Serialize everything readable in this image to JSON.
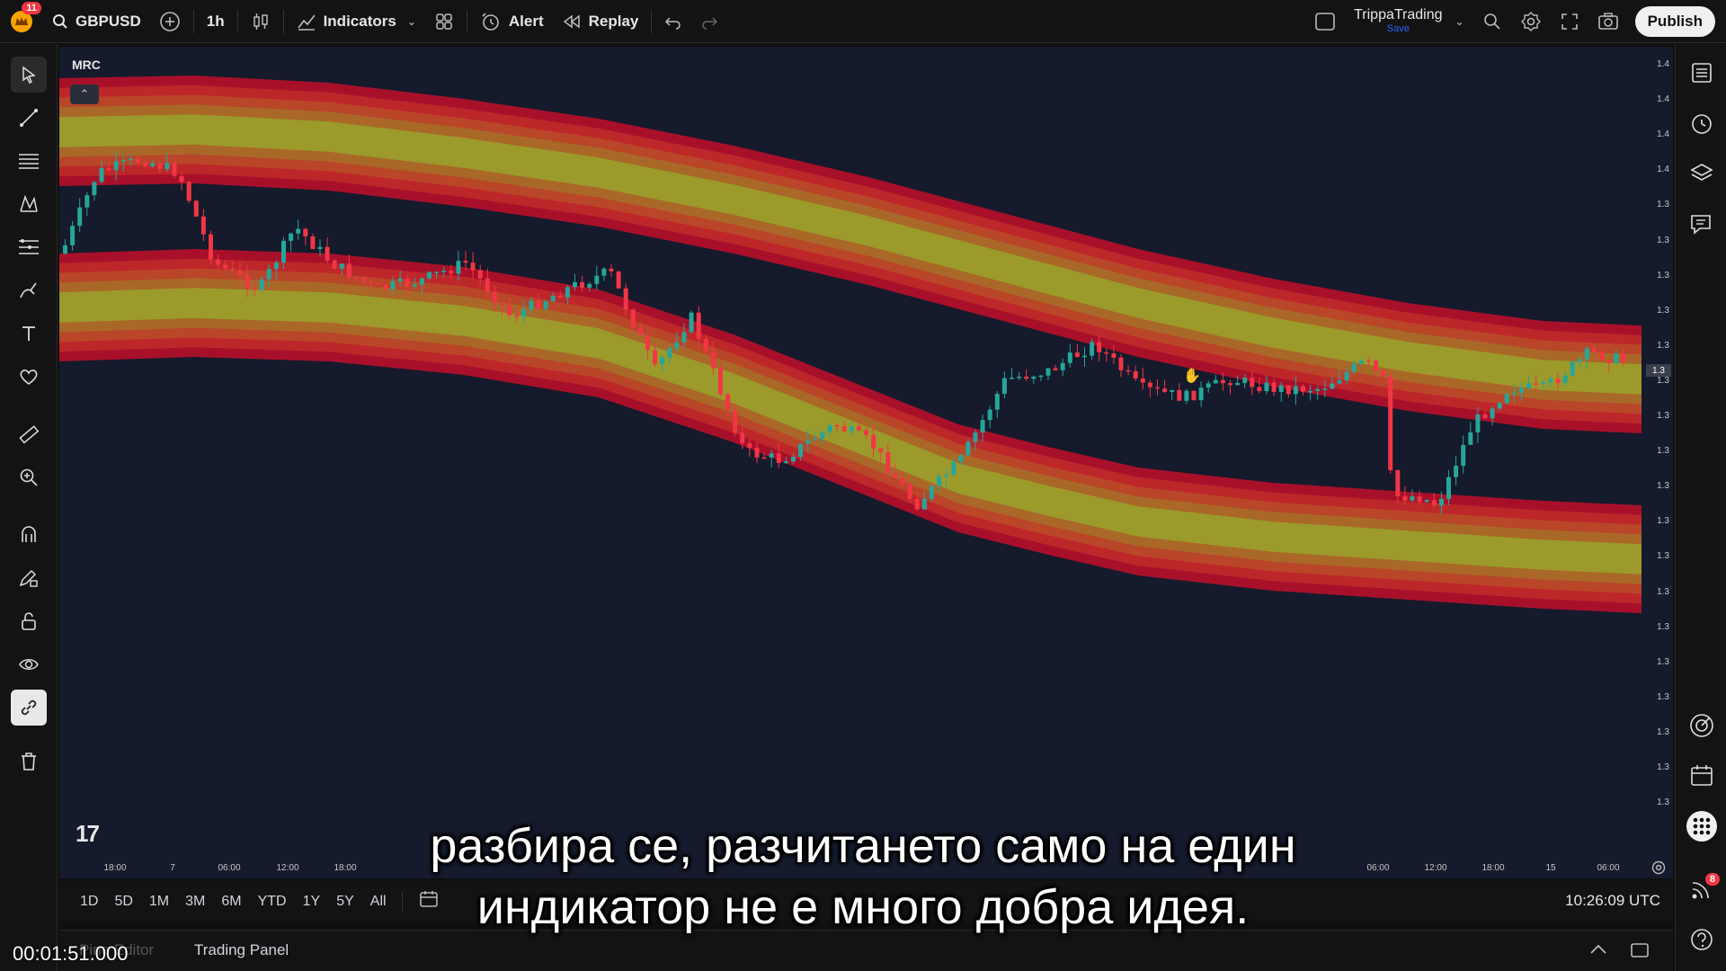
{
  "topbar": {
    "notification_count": "11",
    "symbol": "GBPUSD",
    "interval": "1h",
    "indicators_label": "Indicators",
    "alert_label": "Alert",
    "replay_label": "Replay",
    "user_name": "TrippaTrading",
    "save_label": "Save",
    "publish_label": "Publish"
  },
  "chart": {
    "indicator_label": "MRC",
    "price_ticks": [
      "1.4",
      "1.4",
      "1.4",
      "1.4",
      "1.3",
      "1.3",
      "1.3",
      "1.3",
      "1.3",
      "1.3",
      "1.3",
      "1.3",
      "1.3",
      "1.3",
      "1.3",
      "1.3",
      "1.3",
      "1.3",
      "1.3",
      "1.3",
      "1.3",
      "1.3"
    ],
    "current_price_badge": "1.3",
    "time_ticks": [
      "18:00",
      "7",
      "06:00",
      "12:00",
      "18:00",
      "06:00",
      "12:00",
      "18:00",
      "15",
      "06:00"
    ],
    "colors": {
      "background": "#151a2c",
      "bull": "#26a69a",
      "bear": "#f23645",
      "band_outer": "#b0102a",
      "band_inner": "#9c9a2a"
    }
  },
  "rangebar": {
    "ranges": [
      "1D",
      "5D",
      "1M",
      "3M",
      "6M",
      "YTD",
      "1Y",
      "5Y",
      "All"
    ],
    "clock": "10:26:09 UTC"
  },
  "bottom_tabs": {
    "pine_editor": "Pine Editor",
    "trading_panel": "Trading Panel"
  },
  "right_toolbar": {
    "notification_count": "8"
  },
  "subtitle": {
    "line1": "разбира се, разчитането само на един",
    "line2": "индикатор не е много добра идея.",
    "timecode": "00:01:51.000"
  }
}
